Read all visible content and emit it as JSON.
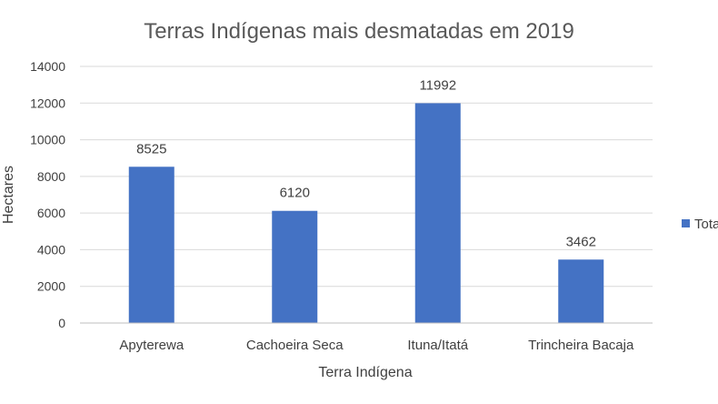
{
  "chart_data": {
    "type": "bar",
    "title": "Terras Indígenas mais desmatadas em 2019",
    "xlabel": "Terra Indígena",
    "ylabel": "Hectares",
    "categories": [
      "Apyterewa",
      "Cachoeira Seca",
      "Ituna/Itatá",
      "Trincheira Bacaja"
    ],
    "series": [
      {
        "name": "Total",
        "values": [
          8525,
          6120,
          11992,
          3462
        ],
        "color": "#4472c4"
      }
    ],
    "data_labels": [
      "8525",
      "6120",
      "11992",
      "3462"
    ],
    "ylim": [
      0,
      14000
    ],
    "yticks": [
      0,
      2000,
      4000,
      6000,
      8000,
      10000,
      12000,
      14000
    ],
    "ytick_labels": [
      "0",
      "2000",
      "4000",
      "6000",
      "8000",
      "10000",
      "12000",
      "14000"
    ],
    "grid": true,
    "legend": {
      "position": "right",
      "label": "Tota"
    }
  }
}
